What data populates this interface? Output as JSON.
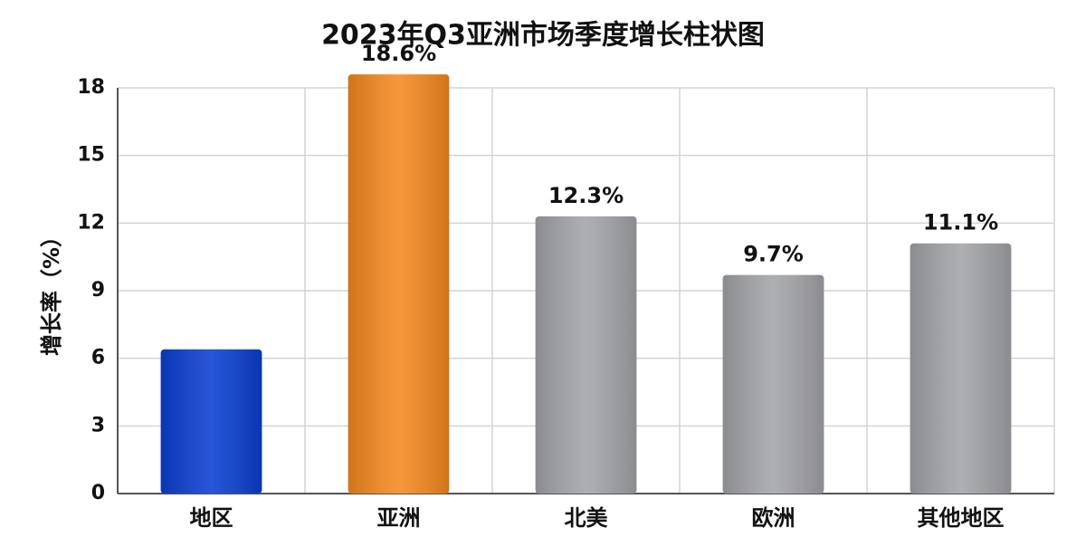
{
  "chart_data": {
    "type": "bar",
    "title": "2023年Q3亚洲市场季度增长柱状图",
    "y_label": "增长率（%）",
    "categories": [
      "地区",
      "亚洲",
      "北美",
      "欧洲",
      "其他地区"
    ],
    "values": [
      6.4,
      18.6,
      12.3,
      9.7,
      11.1
    ],
    "value_labels": [
      null,
      "18.6%",
      "12.3%",
      "9.7%",
      "11.1%"
    ],
    "colors": [
      "#0a3fd1",
      "#f5891f",
      "#a3a4a8",
      "#a3a4a8",
      "#a3a4a8"
    ],
    "ylim": [
      0,
      18
    ],
    "yticks": [
      0,
      3,
      6,
      9,
      12,
      15,
      18
    ],
    "grid": true
  }
}
